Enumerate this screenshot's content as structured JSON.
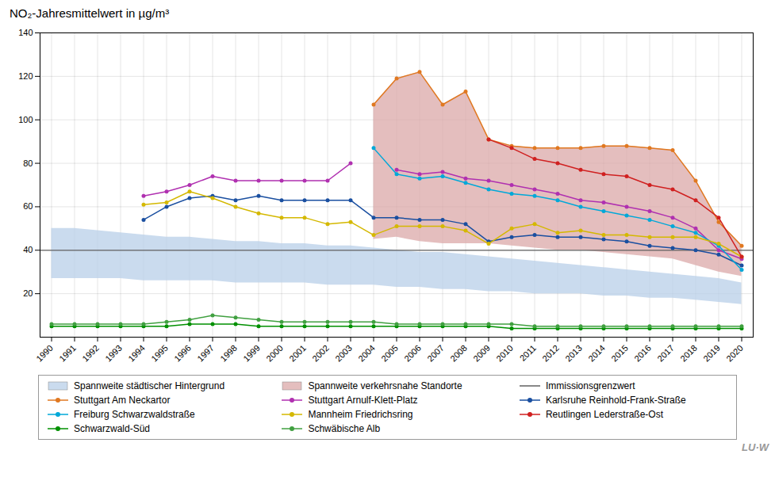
{
  "chart_data": {
    "type": "line",
    "title": "NO₂-Jahresmittelwert in µg/m³",
    "x": [
      1990,
      1991,
      1992,
      1993,
      1994,
      1995,
      1996,
      1997,
      1998,
      1999,
      2000,
      2001,
      2002,
      2003,
      2004,
      2005,
      2006,
      2007,
      2008,
      2009,
      2010,
      2011,
      2012,
      2013,
      2014,
      2015,
      2016,
      2017,
      2018,
      2019,
      2020
    ],
    "xlim": [
      1989.5,
      2020.5
    ],
    "xticks": [
      1990,
      1991,
      1992,
      1993,
      1994,
      1995,
      1996,
      1997,
      1998,
      1999,
      2000,
      2001,
      2002,
      2003,
      2004,
      2005,
      2006,
      2007,
      2008,
      2009,
      2010,
      2011,
      2012,
      2013,
      2014,
      2015,
      2016,
      2017,
      2018,
      2019,
      2020
    ],
    "ylim": [
      0,
      140
    ],
    "yticks": [
      20,
      40,
      60,
      80,
      100,
      120,
      140
    ],
    "grid": true,
    "legend": "bottom",
    "annotations": [
      "LU·W"
    ],
    "series": [
      {
        "name": "Spannweite städtischer Hintergrund",
        "type": "area",
        "color": "#b8cfe8",
        "low": [
          27,
          27,
          27,
          27,
          26,
          26,
          26,
          26,
          25,
          25,
          25,
          25,
          24,
          24,
          24,
          23,
          23,
          22,
          22,
          21,
          21,
          20,
          20,
          20,
          19,
          19,
          18,
          18,
          17,
          16,
          15
        ],
        "high": [
          50,
          50,
          49,
          48,
          47,
          46,
          46,
          45,
          44,
          44,
          43,
          43,
          42,
          42,
          41,
          40,
          39,
          39,
          38,
          37,
          36,
          35,
          34,
          33,
          32,
          31,
          30,
          29,
          28,
          27,
          25
        ]
      },
      {
        "name": "Spannweite verkehrsnahe Standorte",
        "type": "area",
        "color": "#dba8a8",
        "low": [
          null,
          null,
          null,
          null,
          null,
          null,
          null,
          null,
          null,
          null,
          null,
          null,
          null,
          null,
          45,
          46,
          44,
          43,
          43,
          43,
          42,
          41,
          40,
          40,
          39,
          38,
          37,
          36,
          33,
          30,
          28
        ],
        "high": [
          null,
          null,
          null,
          null,
          null,
          null,
          null,
          null,
          null,
          null,
          null,
          null,
          null,
          null,
          107,
          119,
          122,
          107,
          113,
          91,
          88,
          87,
          87,
          87,
          88,
          88,
          87,
          86,
          72,
          53,
          42
        ]
      },
      {
        "name": "Immissionsgrenzwert",
        "type": "rule",
        "color": "#606060",
        "value": 40
      },
      {
        "name": "Stuttgart Am Neckartor",
        "type": "line",
        "marker": "circle",
        "color": "#e07820",
        "values": [
          null,
          null,
          null,
          null,
          null,
          null,
          null,
          null,
          null,
          null,
          null,
          null,
          null,
          null,
          107,
          119,
          122,
          107,
          113,
          91,
          88,
          87,
          87,
          87,
          88,
          88,
          87,
          86,
          72,
          53,
          42
        ]
      },
      {
        "name": "Stuttgart Arnulf-Klett-Platz",
        "type": "line",
        "marker": "circle",
        "color": "#b030b0",
        "values": [
          null,
          null,
          null,
          null,
          65,
          67,
          70,
          74,
          72,
          72,
          72,
          72,
          72,
          80,
          null,
          77,
          75,
          76,
          73,
          72,
          70,
          68,
          66,
          63,
          62,
          60,
          58,
          55,
          50,
          40,
          36
        ]
      },
      {
        "name": "Karlsruhe Reinhold-Frank-Straße",
        "type": "line",
        "marker": "circle",
        "color": "#1a4fa0",
        "values": [
          null,
          null,
          null,
          null,
          54,
          60,
          64,
          65,
          63,
          65,
          63,
          63,
          63,
          63,
          55,
          55,
          54,
          54,
          52,
          44,
          46,
          47,
          46,
          46,
          45,
          44,
          42,
          41,
          40,
          38,
          33
        ]
      },
      {
        "name": "Freiburg Schwarzwaldstraße",
        "type": "line",
        "marker": "circle",
        "color": "#00a8d8",
        "values": [
          null,
          null,
          null,
          null,
          null,
          null,
          null,
          null,
          null,
          null,
          null,
          null,
          null,
          null,
          87,
          75,
          73,
          74,
          71,
          68,
          66,
          65,
          63,
          60,
          58,
          56,
          54,
          51,
          48,
          42,
          31
        ]
      },
      {
        "name": "Mannheim Friedrichsring",
        "type": "line",
        "marker": "circle",
        "color": "#d4b800",
        "values": [
          null,
          null,
          null,
          null,
          61,
          62,
          67,
          64,
          60,
          57,
          55,
          55,
          52,
          53,
          47,
          51,
          51,
          51,
          49,
          43,
          50,
          52,
          48,
          49,
          47,
          47,
          46,
          46,
          46,
          43,
          37
        ]
      },
      {
        "name": "Reutlingen Lederstraße-Ost",
        "type": "line",
        "marker": "circle",
        "color": "#d02020",
        "values": [
          null,
          null,
          null,
          null,
          null,
          null,
          null,
          null,
          null,
          null,
          null,
          null,
          null,
          null,
          null,
          null,
          null,
          null,
          null,
          91,
          87,
          82,
          80,
          77,
          75,
          74,
          70,
          68,
          63,
          55,
          37
        ]
      },
      {
        "name": "Schwarzwald-Süd",
        "type": "line",
        "marker": "circle",
        "color": "#009000",
        "values": [
          5,
          5,
          5,
          5,
          5,
          5,
          6,
          6,
          6,
          5,
          5,
          5,
          5,
          5,
          5,
          5,
          5,
          5,
          5,
          5,
          4,
          4,
          4,
          4,
          4,
          4,
          4,
          4,
          4,
          4,
          4
        ]
      },
      {
        "name": "Schwäbische Alb",
        "type": "line",
        "marker": "circle",
        "color": "#40a040",
        "values": [
          6,
          6,
          6,
          6,
          6,
          7,
          8,
          10,
          9,
          8,
          7,
          7,
          7,
          7,
          7,
          6,
          6,
          6,
          6,
          6,
          6,
          5,
          5,
          5,
          5,
          5,
          5,
          5,
          5,
          5,
          5
        ]
      }
    ]
  }
}
